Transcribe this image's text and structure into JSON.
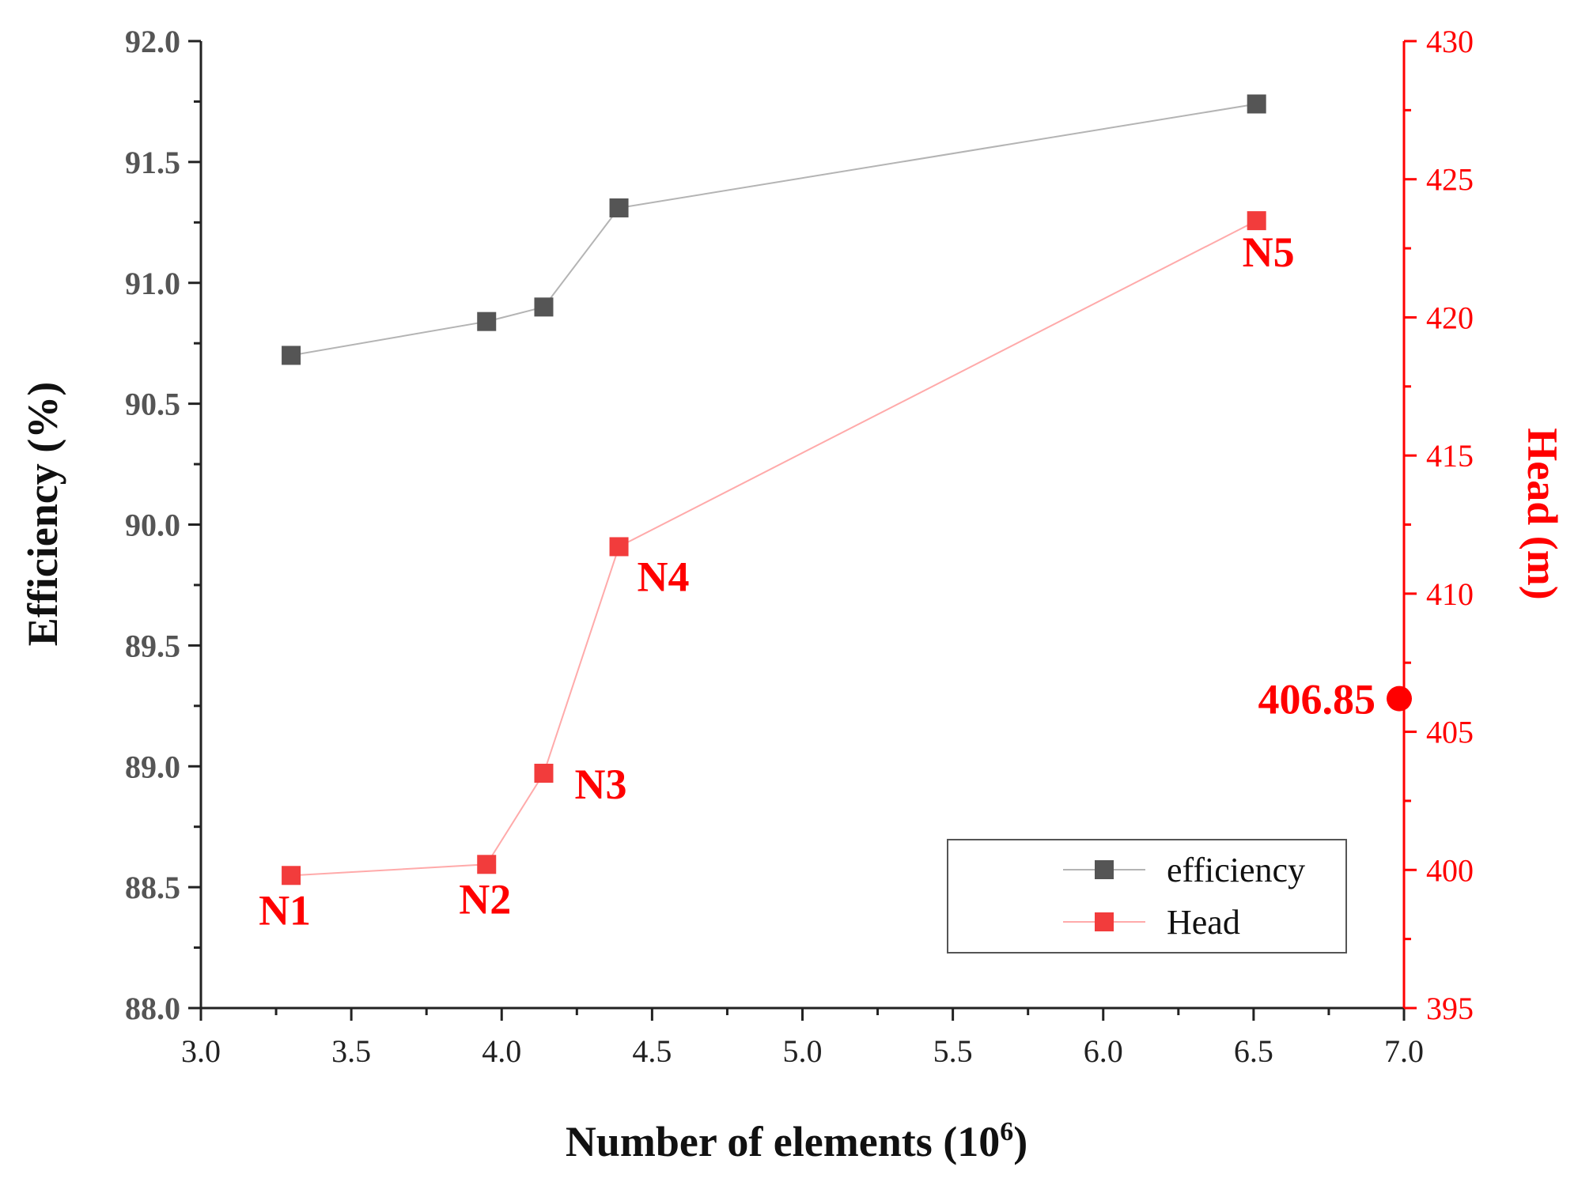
{
  "chart_data": {
    "type": "line",
    "xlabel": "Number of elements (10",
    "xlabel_sup": "6",
    "xlabel_end": ")",
    "ylabel_left": "Efficiency (%)",
    "ylabel_right": "Head (m)",
    "xlim": [
      3.0,
      7.0
    ],
    "ylim_left": [
      88.0,
      92.0
    ],
    "ylim_right": [
      395,
      430
    ],
    "x_ticks": [
      "3.0",
      "3.5",
      "4.0",
      "4.5",
      "5.0",
      "5.5",
      "6.0",
      "6.5",
      "7.0"
    ],
    "y_left_ticks": [
      "88.0",
      "88.5",
      "89.0",
      "89.5",
      "90.0",
      "90.5",
      "91.0",
      "91.5",
      "92.0"
    ],
    "y_right_ticks": [
      "395",
      "400",
      "405",
      "410",
      "415",
      "420",
      "425",
      "430"
    ],
    "legend_position": "bottom-right",
    "grid": false,
    "series": [
      {
        "name": "efficiency",
        "axis": "left",
        "color": "#555555",
        "line_color": "#b4b4b4",
        "x": [
          3.3,
          3.95,
          4.14,
          4.39,
          6.51
        ],
        "y": [
          90.7,
          90.84,
          90.9,
          91.31,
          91.74
        ]
      },
      {
        "name": "Head",
        "axis": "right",
        "color": "#f23c3c",
        "line_color": "#ffaaaa",
        "x": [
          3.3,
          3.95,
          4.14,
          4.39,
          6.51
        ],
        "y": [
          399.8,
          400.2,
          403.5,
          411.7,
          423.5
        ],
        "point_labels": [
          "N1",
          "N2",
          "N3",
          "N4",
          "N5"
        ]
      }
    ],
    "annotation": {
      "label": "406.85",
      "x": 7.0,
      "y_right": 406.2,
      "color": "#ff0000"
    }
  }
}
